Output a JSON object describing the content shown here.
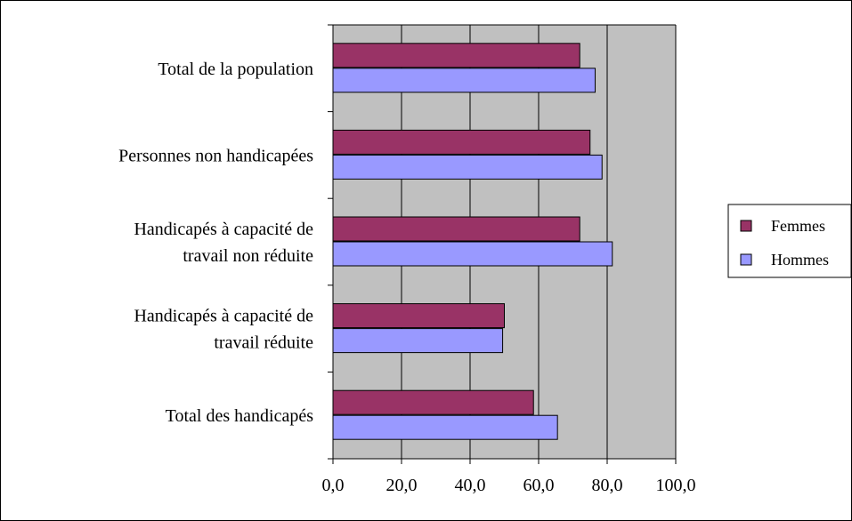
{
  "chart_data": {
    "type": "bar",
    "orientation": "horizontal",
    "categories": [
      [
        "Total de la population"
      ],
      [
        "Personnes non handicapées"
      ],
      [
        "Handicapés à capacité de",
        "travail non réduite"
      ],
      [
        "Handicapés à capacité de",
        "travail réduite"
      ],
      [
        "Total des handicapés"
      ]
    ],
    "series": [
      {
        "name": "Femmes",
        "color": "#993366",
        "values": [
          72.0,
          75.0,
          72.0,
          50.0,
          58.5
        ]
      },
      {
        "name": "Hommes",
        "color": "#9999ff",
        "values": [
          76.5,
          78.5,
          81.5,
          49.5,
          65.5
        ]
      }
    ],
    "xlim": [
      0,
      100
    ],
    "xticks": [
      "0,0",
      "20,0",
      "40,0",
      "60,0",
      "80,0",
      "100,0"
    ],
    "xtick_values": [
      0,
      20,
      40,
      60,
      80,
      100
    ],
    "grid": true,
    "plot_background": "#c0c0c0",
    "legend": {
      "position": "right",
      "entries": [
        "Femmes",
        "Hommes"
      ]
    },
    "title": "",
    "xlabel": "",
    "ylabel": ""
  }
}
